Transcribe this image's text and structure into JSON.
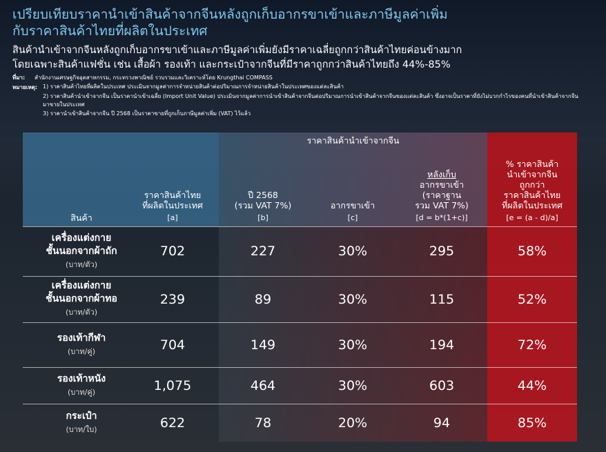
{
  "header": {
    "title": [
      "เปรียบเทียบราคานำเข้าสินค้าจากจีนหลังถูกเก็บอากรขาเข้าและภาษีมูลค่าเพิ่ม",
      "กับราคาสินค้าไทยที่ผลิตในประเทศ"
    ],
    "subtitle": [
      "สินค้านำเข้าจากจีนหลังถูกเก็บอากรขาเข้าและภาษีมูลค่าเพิ่มยังมีราคาเฉลี่ยถูกกว่าสินค้าไทยค่อนข้างมาก",
      "โดยเฉพาะสินค้าแฟชั่น เช่น เสื้อผ้า รองเท้า และกระเป๋าจากจีนที่มีราคาถูกกว่าสินค้าไทยถึง 44%-85%"
    ]
  },
  "source": {
    "label": "ที่มา:",
    "text": "สำนักงานเศรษฐกิจอุตสาหกรรม, กระทรวงพาณิชย์ รวบรวมและวิเคราะห์โดย Krungthai COMPASS"
  },
  "notes": {
    "label": "หมายเหตุ:",
    "items": [
      "1) ราคาสินค้าไทยที่ผลิตในประเทศ ประเมินจากมูลค่าการจำหน่ายสินค้าต่อปริมาณการจำหน่ายสินค้าในประเทศของแต่ละสินค้า",
      "2) ราคาสินค้านำเข้าจากจีน เป็นราคานำเข้าเฉลี่ย (Import Unit Value) ประเมินจากมูลค่าการนำเข้าสินค้าจากจีนต่อปริมาณการนำเข้าสินค้าจากจีนของแต่ละสินค้า ซึ่งอาจเป็นราคาที่ยังไม่บวกกำไรของคนที่นำเข้าสินค้าจากจีนมาขายในประเทศ",
      "3) ราคานำเข้าสินค้าจากจีน ปี 2568 เป็นราคาขายที่ถูกเก็บภาษีมูลค่าเพิ่ม (VAT) ไว้แล้ว"
    ]
  },
  "table": {
    "group_header": "ราคาสินค้านำเข้าจากจีน",
    "columns": [
      {
        "lines": [
          "สินค้า"
        ]
      },
      {
        "lines": [
          "ราคาสินค้าไทย",
          "ที่ผลิตในประเทศ"
        ],
        "formula": "[a]"
      },
      {
        "lines": [
          "ปี 2568",
          "(รวม VAT 7%)"
        ],
        "formula": "[b]"
      },
      {
        "lines": [
          "อากรขาเข้า"
        ],
        "formula": "[c]"
      },
      {
        "lines": [
          "หลังเก็บ",
          "อากรขาเข้า",
          "(ราคาฐาน",
          "รวม VAT 7%)"
        ],
        "formula": "[d = b*(1+c)]"
      },
      {
        "lines": [
          "% ราคาสินค้า",
          "นำเข้าจากจีน",
          "ถูกกว่า",
          "ราคาสินค้าไทย",
          "ที่ผลิตในประเทศ"
        ],
        "formula": "[e = (a - d)/a]"
      }
    ],
    "rows": [
      {
        "name": [
          "เครื่องแต่งกาย",
          "ชั้นนอกจากผ้าถัก"
        ],
        "unit": "(บาท/ตัว)",
        "cells": [
          "702",
          "227",
          "30%",
          "295",
          "58%"
        ]
      },
      {
        "name": [
          "เครื่องแต่งกาย",
          "ชั้นนอกจากผ้าทอ"
        ],
        "unit": "(บาท/ตัว)",
        "cells": [
          "239",
          "89",
          "30%",
          "115",
          "52%"
        ]
      },
      {
        "name": [
          "รองเท้ากีฬา"
        ],
        "unit": "(บาท/คู่)",
        "cells": [
          "704",
          "149",
          "30%",
          "194",
          "72%"
        ]
      },
      {
        "name": [
          "รองเท้าหนัง"
        ],
        "unit": "(บาท/คู่)",
        "cells": [
          "1,075",
          "464",
          "30%",
          "603",
          "44%"
        ]
      },
      {
        "name": [
          "กระเป๋า"
        ],
        "unit": "(บาท/ใบ)",
        "cells": [
          "622",
          "78",
          "20%",
          "94",
          "85%"
        ]
      }
    ]
  }
}
